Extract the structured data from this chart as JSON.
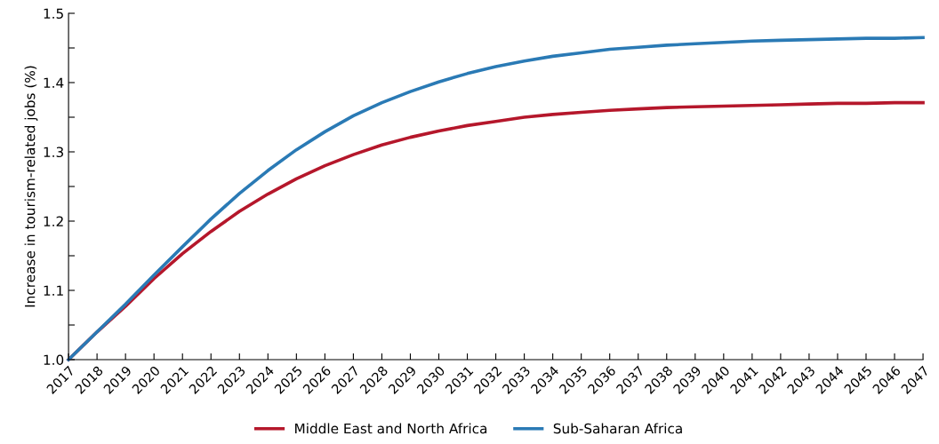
{
  "chart_data": {
    "type": "line",
    "ylabel": "Increase in tourism-related jobs (%)",
    "x": [
      2017,
      2018,
      2019,
      2020,
      2021,
      2022,
      2023,
      2024,
      2025,
      2026,
      2027,
      2028,
      2029,
      2030,
      2031,
      2032,
      2033,
      2034,
      2035,
      2036,
      2037,
      2038,
      2039,
      2040,
      2041,
      2042,
      2043,
      2044,
      2045,
      2046,
      2047
    ],
    "series": [
      {
        "name": "Middle East and North Africa",
        "color": "#b5172b",
        "values": [
          1.0,
          1.04,
          1.077,
          1.117,
          1.153,
          1.185,
          1.214,
          1.239,
          1.261,
          1.28,
          1.296,
          1.31,
          1.321,
          1.33,
          1.338,
          1.344,
          1.35,
          1.354,
          1.357,
          1.36,
          1.362,
          1.364,
          1.365,
          1.366,
          1.367,
          1.368,
          1.369,
          1.37,
          1.37,
          1.371,
          1.371
        ]
      },
      {
        "name": "Sub-Saharan Africa",
        "color": "#2a7ab5",
        "values": [
          1.0,
          1.04,
          1.08,
          1.122,
          1.163,
          1.203,
          1.24,
          1.273,
          1.303,
          1.329,
          1.352,
          1.371,
          1.387,
          1.401,
          1.413,
          1.423,
          1.431,
          1.438,
          1.443,
          1.448,
          1.451,
          1.454,
          1.456,
          1.458,
          1.46,
          1.461,
          1.462,
          1.463,
          1.464,
          1.464,
          1.465
        ]
      }
    ],
    "xlim": [
      2017,
      2047
    ],
    "xticks": [
      2017,
      2018,
      2019,
      2020,
      2021,
      2022,
      2023,
      2024,
      2025,
      2026,
      2027,
      2028,
      2029,
      2030,
      2031,
      2032,
      2033,
      2034,
      2035,
      2036,
      2037,
      2038,
      2039,
      2040,
      2041,
      2042,
      2043,
      2044,
      2045,
      2046,
      2047
    ],
    "ylim": [
      1.0,
      1.5
    ],
    "yticks": [
      {
        "value": 1.0,
        "label": "1.0"
      },
      {
        "value": 1.05,
        "label": null
      },
      {
        "value": 1.1,
        "label": "1.1"
      },
      {
        "value": 1.15,
        "label": null
      },
      {
        "value": 1.2,
        "label": "1.2"
      },
      {
        "value": 1.25,
        "label": null
      },
      {
        "value": 1.3,
        "label": "1.3"
      },
      {
        "value": 1.35,
        "label": null
      },
      {
        "value": 1.4,
        "label": "1.4"
      },
      {
        "value": 1.45,
        "label": null
      },
      {
        "value": 1.5,
        "label": "1.5"
      }
    ],
    "grid": false,
    "legend": "bottom",
    "marker": "none",
    "line_style": "solid"
  }
}
